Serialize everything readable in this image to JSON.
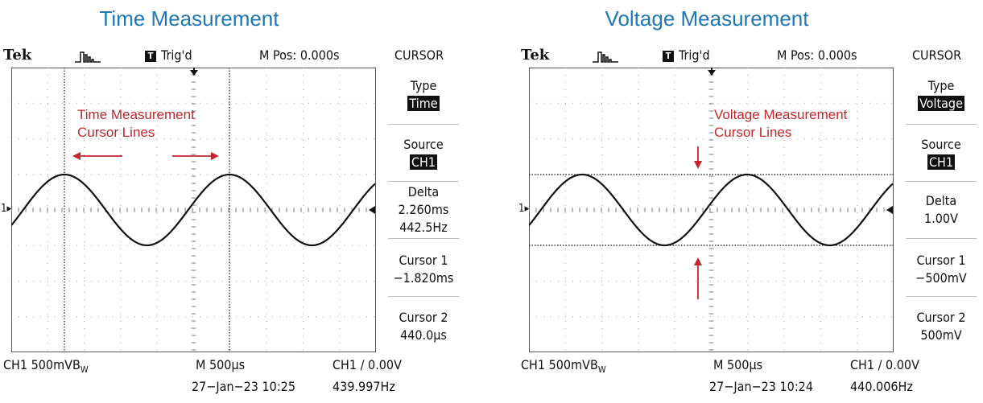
{
  "left": {
    "panel_title": "Time Measurement",
    "brand": "Tek",
    "acq_icon": "acquisition-pulse-icon",
    "trig_icon": "T",
    "trig_status": "Trig'd",
    "mpos": "M Pos: 0.000s",
    "menu_title": "CURSOR",
    "menu": {
      "type_label": "Type",
      "type_value": "Time",
      "source_label": "Source",
      "source_value": "CH1",
      "delta_label": "Delta",
      "delta_value1": "2.260ms",
      "delta_value2": "442.5Hz",
      "cursor1_label": "Cursor 1",
      "cursor1_value": "−1.820ms",
      "cursor2_label": "Cursor 2",
      "cursor2_value": "440.0µs"
    },
    "bottom": {
      "ch_scale": "CH1  500mVB",
      "bw_sub": "W",
      "timebase": "M 500µs",
      "trigger": "CH1 ∕ 0.00V",
      "datetime": "27−Jan−23 10:25",
      "frequency": "439.997Hz"
    },
    "annotation": {
      "line1": "Time Measurement",
      "line2": "Cursor Lines"
    },
    "ch_marker": "1"
  },
  "right": {
    "panel_title": "Voltage Measurement",
    "brand": "Tek",
    "acq_icon": "acquisition-pulse-icon",
    "trig_icon": "T",
    "trig_status": "Trig'd",
    "mpos": "M Pos: 0.000s",
    "menu_title": "CURSOR",
    "menu": {
      "type_label": "Type",
      "type_value": "Voltage",
      "source_label": "Source",
      "source_value": "CH1",
      "delta_label": "Delta",
      "delta_value1": "1.00V",
      "cursor1_label": "Cursor 1",
      "cursor1_value": "−500mV",
      "cursor2_label": "Cursor 2",
      "cursor2_value": "500mV"
    },
    "bottom": {
      "ch_scale": "CH1  500mVB",
      "bw_sub": "W",
      "timebase": "M 500µs",
      "trigger": "CH1 ∕ 0.00V",
      "datetime": "27−Jan−23 10:24",
      "frequency": "440.006Hz"
    },
    "annotation": {
      "line1": "Voltage Measurement",
      "line2": "Cursor Lines"
    },
    "ch_marker": "1"
  },
  "colors": {
    "title_blue": "#1f77b4",
    "annotation_red": "#c0282d",
    "trace": "#111111",
    "grid": "#9a9a9a"
  }
}
